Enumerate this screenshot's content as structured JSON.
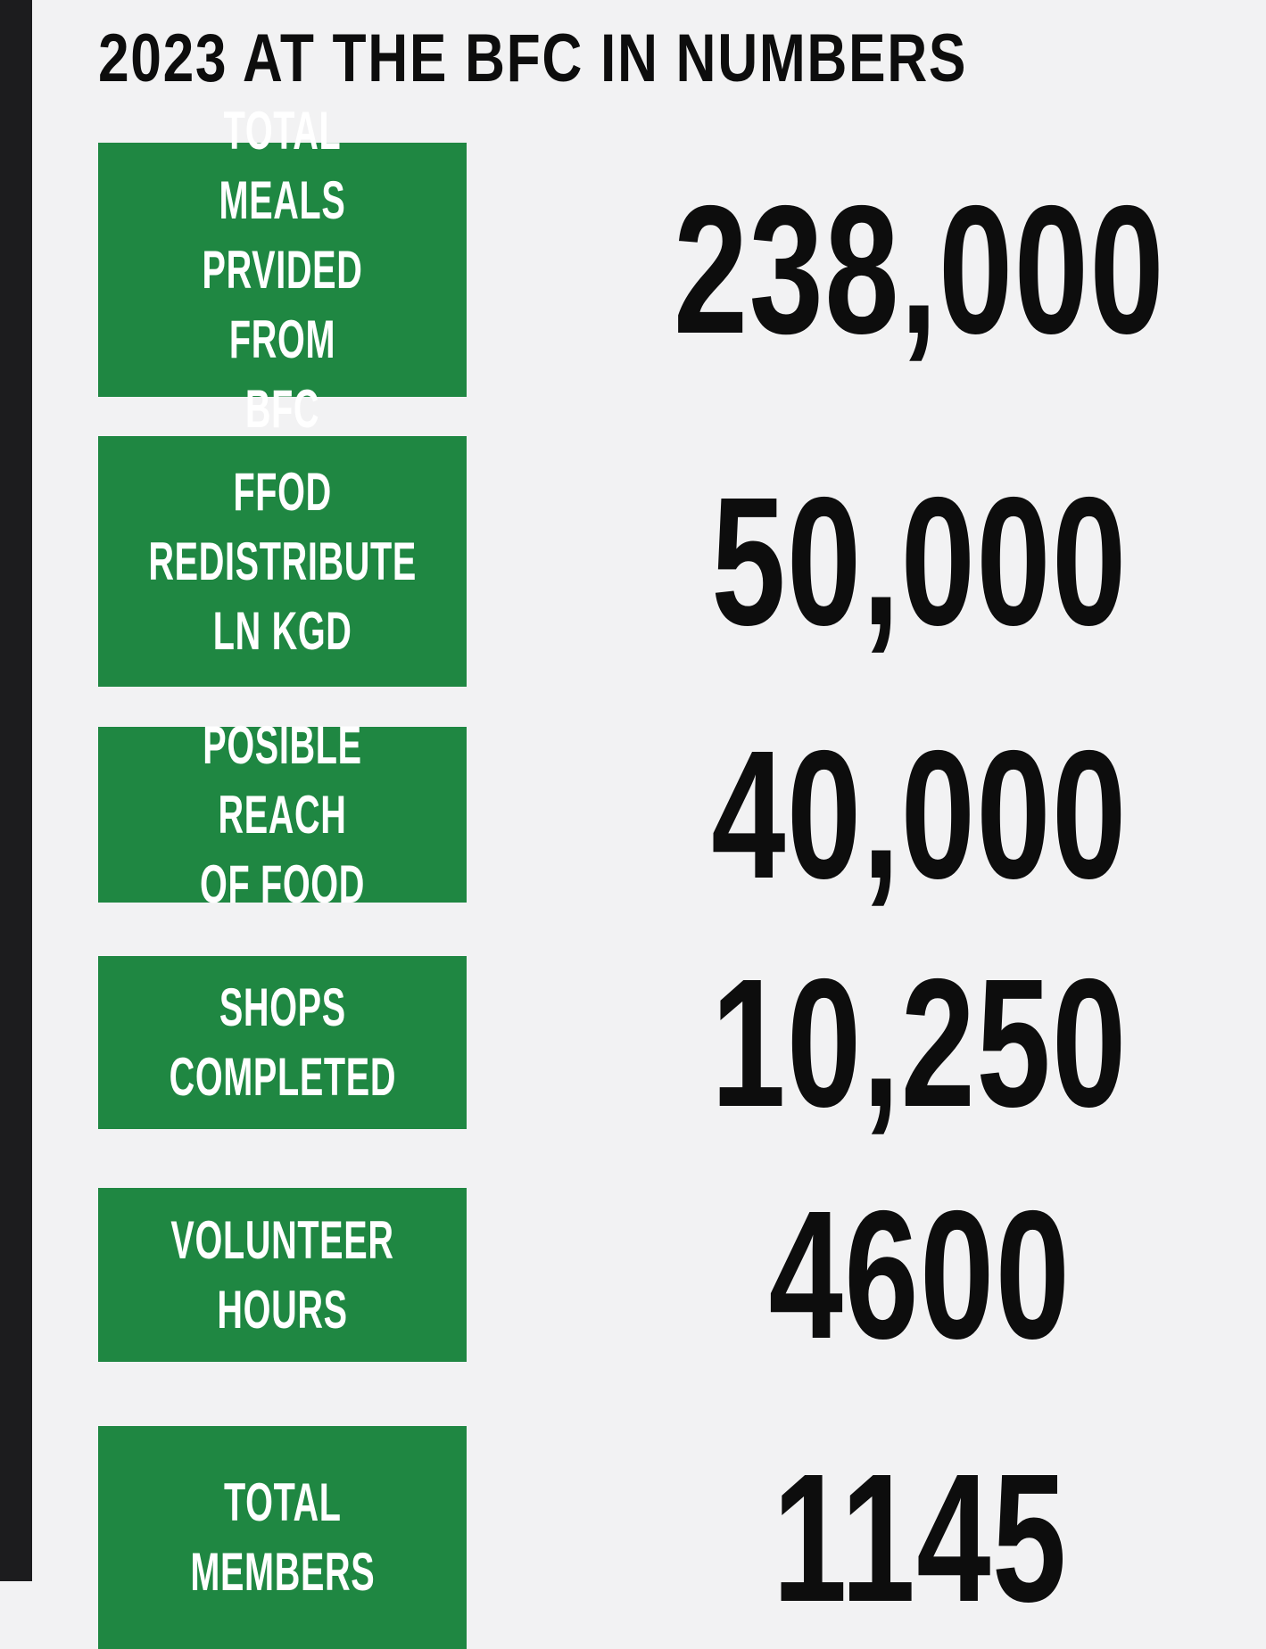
{
  "page": {
    "title": "2023 AT THE BFC IN NUMBERS"
  },
  "colors": {
    "green": "#1f8742",
    "bg": "#f2f2f3",
    "strip": "#1c1c1e",
    "ink": "#0d0d0d"
  },
  "rows": [
    {
      "label": "TOTAL MEALS\nPRVIDED FROM\nBFC",
      "value": "238,000"
    },
    {
      "label": "FFOD\nREDISTRIBUTE\nLN KGD",
      "value": "50,000"
    },
    {
      "label": "POSIBLE REACH\nOF FOOD",
      "value": "40,000"
    },
    {
      "label": "SHOPS\nCOMPLETED",
      "value": "10,250"
    },
    {
      "label": "VOLUNTEER\nHOURS",
      "value": "4600"
    },
    {
      "label": "TOTAL\nMEMBERS",
      "value": "1145"
    }
  ],
  "chart_data": {
    "type": "table",
    "title": "2023 AT THE BFC IN NUMBERS",
    "categories": [
      "TOTAL MEALS PRVIDED FROM BFC",
      "FFOD REDISTRIBUTE LN KGD",
      "POSIBLE REACH OF FOOD",
      "SHOPS COMPLETED",
      "VOLUNTEER HOURS",
      "TOTAL MEMBERS"
    ],
    "values": [
      238000,
      50000,
      40000,
      10250,
      4600,
      1145
    ],
    "value_labels": [
      "238,000",
      "50,000",
      "40,000",
      "10,250",
      "4600",
      "1145"
    ],
    "legend_position": "none",
    "grid": false
  }
}
